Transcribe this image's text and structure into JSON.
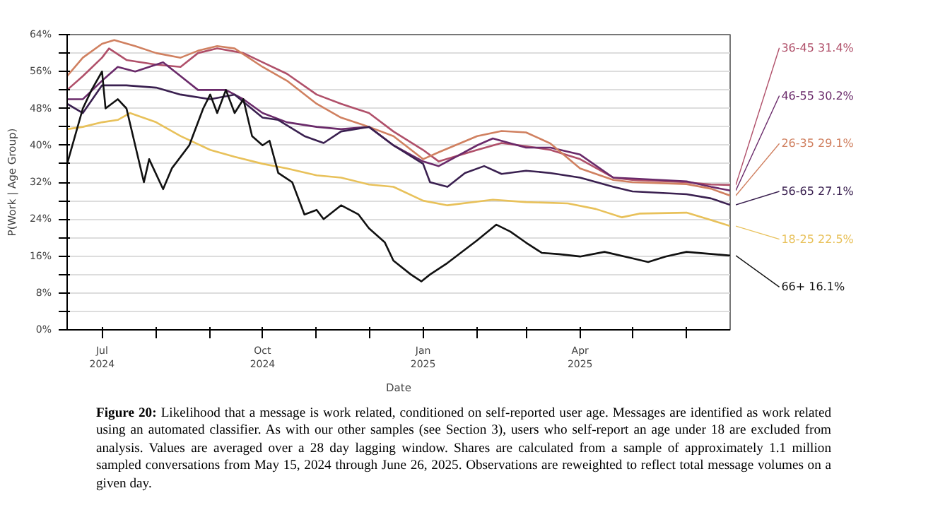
{
  "chart_data": {
    "type": "line",
    "xlabel": "Date",
    "ylabel": "P(Work | Age Group)",
    "xlim": [
      "2024-06-11",
      "2025-06-26"
    ],
    "xticks": [
      {
        "value": "2024-07-01",
        "label": "Jul\n2024"
      },
      {
        "value": "2024-08-01",
        "label": null
      },
      {
        "value": "2024-09-01",
        "label": null
      },
      {
        "value": "2024-10-01",
        "label": "Oct\n2024"
      },
      {
        "value": "2024-11-01",
        "label": null
      },
      {
        "value": "2024-12-01",
        "label": null
      },
      {
        "value": "2025-01-01",
        "label": "Jan\n2025"
      },
      {
        "value": "2025-02-01",
        "label": null
      },
      {
        "value": "2025-03-01",
        "label": null
      },
      {
        "value": "2025-04-01",
        "label": "Apr\n2025"
      },
      {
        "value": "2025-05-01",
        "label": null
      },
      {
        "value": "2025-06-01",
        "label": null
      }
    ],
    "ylim": [
      0,
      64
    ],
    "yticks": [
      {
        "value": 0,
        "label": "0%"
      },
      {
        "value": 4,
        "label": null
      },
      {
        "value": 8,
        "label": "8%"
      },
      {
        "value": 12,
        "label": null
      },
      {
        "value": 16,
        "label": "16%"
      },
      {
        "value": 20,
        "label": null
      },
      {
        "value": 24,
        "label": "24%"
      },
      {
        "value": 28,
        "label": null
      },
      {
        "value": 32,
        "label": "32%"
      },
      {
        "value": 36,
        "label": null
      },
      {
        "value": 40,
        "label": "40%"
      },
      {
        "value": 44,
        "label": null
      },
      {
        "value": 48,
        "label": "48%"
      },
      {
        "value": 52,
        "label": null
      },
      {
        "value": 56,
        "label": "56%"
      },
      {
        "value": 60,
        "label": null
      },
      {
        "value": 64,
        "label": "64%"
      }
    ],
    "grid": "y",
    "marker": "none",
    "line_style": "solid",
    "series": [
      {
        "name": "36-45",
        "color": "#b0506a",
        "x": [
          "2024-06-11",
          "2024-06-20",
          "2024-07-01",
          "2024-07-05",
          "2024-07-15",
          "2024-08-01",
          "2024-08-15",
          "2024-08-25",
          "2024-09-05",
          "2024-09-20",
          "2024-10-01",
          "2024-10-15",
          "2024-11-01",
          "2024-11-15",
          "2024-12-01",
          "2024-12-15",
          "2025-01-01",
          "2025-01-10",
          "2025-02-01",
          "2025-02-15",
          "2025-03-01",
          "2025-03-15",
          "2025-04-01",
          "2025-04-20",
          "2025-05-01",
          "2025-06-01",
          "2025-06-15",
          "2025-06-26"
        ],
        "values": [
          52,
          55,
          59,
          61,
          58.5,
          57.5,
          57,
          60,
          61,
          60,
          58,
          55.5,
          51,
          49,
          47,
          43,
          39,
          36.5,
          39,
          40.5,
          39.8,
          39,
          37,
          33,
          32.5,
          32,
          31.5,
          31.4
        ],
        "value_labels": [
          null,
          null,
          null,
          null,
          null,
          null,
          null,
          null,
          null,
          null,
          null,
          null,
          null,
          null,
          null,
          null,
          null,
          null,
          null,
          null,
          null,
          null,
          null,
          null,
          null,
          null,
          null,
          "31.4%"
        ]
      },
      {
        "name": "46-55",
        "color": "#6a2a6a",
        "x": [
          "2024-06-11",
          "2024-06-20",
          "2024-07-01",
          "2024-07-10",
          "2024-07-20",
          "2024-08-05",
          "2024-08-15",
          "2024-08-25",
          "2024-09-10",
          "2024-09-20",
          "2024-10-01",
          "2024-10-15",
          "2024-11-01",
          "2024-11-15",
          "2024-12-01",
          "2024-12-15",
          "2025-01-01",
          "2025-01-10",
          "2025-02-01",
          "2025-02-10",
          "2025-03-01",
          "2025-03-15",
          "2025-04-01",
          "2025-04-20",
          "2025-05-01",
          "2025-06-01",
          "2025-06-15",
          "2025-06-26"
        ],
        "values": [
          50,
          50,
          54,
          57,
          56,
          58,
          55,
          52,
          52,
          50,
          47,
          45,
          44,
          43.5,
          44,
          40,
          36.5,
          35.5,
          40,
          41.5,
          39.5,
          39.5,
          38,
          33,
          32.8,
          32.2,
          31,
          30.2
        ],
        "value_labels": [
          null,
          null,
          null,
          null,
          null,
          null,
          null,
          null,
          null,
          null,
          null,
          null,
          null,
          null,
          null,
          null,
          null,
          null,
          null,
          null,
          null,
          null,
          null,
          null,
          null,
          null,
          null,
          "30.2%"
        ]
      },
      {
        "name": "26-35",
        "color": "#d08060",
        "x": [
          "2024-06-11",
          "2024-06-20",
          "2024-07-01",
          "2024-07-08",
          "2024-07-20",
          "2024-08-01",
          "2024-08-15",
          "2024-08-25",
          "2024-09-05",
          "2024-09-15",
          "2024-10-01",
          "2024-10-15",
          "2024-11-01",
          "2024-11-15",
          "2024-12-01",
          "2024-12-15",
          "2025-01-01",
          "2025-01-10",
          "2025-02-01",
          "2025-02-15",
          "2025-03-01",
          "2025-03-15",
          "2025-04-01",
          "2025-04-20",
          "2025-05-01",
          "2025-06-01",
          "2025-06-15",
          "2025-06-26"
        ],
        "values": [
          55,
          59,
          62,
          62.8,
          61.5,
          60,
          59,
          60.5,
          61.5,
          61,
          57,
          54,
          49,
          46,
          44,
          42,
          37,
          38.5,
          42,
          43.1,
          42.8,
          40.4,
          35,
          32.5,
          32,
          31.6,
          30.6,
          29.1
        ],
        "value_labels": [
          null,
          null,
          null,
          null,
          null,
          null,
          null,
          null,
          null,
          null,
          null,
          null,
          null,
          null,
          null,
          null,
          null,
          null,
          null,
          null,
          null,
          null,
          null,
          null,
          null,
          null,
          null,
          "29.1%"
        ]
      },
      {
        "name": "56-65",
        "color": "#3a2050",
        "x": [
          "2024-06-11",
          "2024-06-20",
          "2024-07-01",
          "2024-07-15",
          "2024-08-01",
          "2024-08-15",
          "2024-09-01",
          "2024-09-15",
          "2024-10-01",
          "2024-10-10",
          "2024-10-25",
          "2024-11-05",
          "2024-11-15",
          "2024-12-01",
          "2024-12-15",
          "2025-01-01",
          "2025-01-05",
          "2025-01-15",
          "2025-01-25",
          "2025-02-05",
          "2025-02-15",
          "2025-03-01",
          "2025-03-15",
          "2025-04-01",
          "2025-04-20",
          "2025-05-01",
          "2025-06-01",
          "2025-06-15",
          "2025-06-26"
        ],
        "values": [
          49,
          47,
          53,
          53,
          52.5,
          51,
          50,
          51,
          46,
          45.5,
          42,
          40.5,
          43,
          44,
          40,
          36,
          32,
          31,
          34,
          35.5,
          33.8,
          34.5,
          34,
          33,
          31,
          30,
          29.4,
          28.5,
          27.1
        ],
        "value_labels": [
          null,
          null,
          null,
          null,
          null,
          null,
          null,
          null,
          null,
          null,
          null,
          null,
          null,
          null,
          null,
          null,
          null,
          null,
          null,
          null,
          null,
          null,
          null,
          null,
          null,
          null,
          null,
          null,
          "27.1%"
        ]
      },
      {
        "name": "18-25",
        "color": "#e8c15a",
        "x": [
          "2024-06-11",
          "2024-06-20",
          "2024-07-01",
          "2024-07-10",
          "2024-07-17",
          "2024-08-01",
          "2024-08-15",
          "2024-09-01",
          "2024-09-15",
          "2024-10-01",
          "2024-10-15",
          "2024-11-01",
          "2024-11-15",
          "2024-12-01",
          "2024-12-15",
          "2025-01-01",
          "2025-01-15",
          "2025-02-10",
          "2025-03-01",
          "2025-03-25",
          "2025-04-10",
          "2025-04-25",
          "2025-05-05",
          "2025-06-01",
          "2025-06-15",
          "2025-06-26"
        ],
        "values": [
          43.5,
          44,
          45,
          45.5,
          47,
          45,
          42,
          39,
          37.5,
          36,
          35,
          33.5,
          33,
          31.5,
          31,
          28,
          27,
          28.2,
          27.7,
          27.4,
          26.2,
          24.4,
          25.2,
          25.4,
          23.8,
          22.5
        ],
        "value_labels": [
          null,
          null,
          null,
          null,
          null,
          null,
          null,
          null,
          null,
          null,
          null,
          null,
          null,
          null,
          null,
          null,
          null,
          null,
          null,
          null,
          null,
          null,
          null,
          null,
          null,
          "22.5%"
        ]
      },
      {
        "name": "66+",
        "color": "#111111",
        "x": [
          "2024-06-11",
          "2024-06-20",
          "2024-06-25",
          "2024-07-01",
          "2024-07-03",
          "2024-07-10",
          "2024-07-15",
          "2024-07-20",
          "2024-07-25",
          "2024-07-28",
          "2024-08-05",
          "2024-08-10",
          "2024-08-20",
          "2024-08-28",
          "2024-09-01",
          "2024-09-05",
          "2024-09-10",
          "2024-09-15",
          "2024-09-20",
          "2024-09-25",
          "2024-10-01",
          "2024-10-05",
          "2024-10-10",
          "2024-10-18",
          "2024-10-25",
          "2024-11-01",
          "2024-11-05",
          "2024-11-15",
          "2024-11-25",
          "2024-12-01",
          "2024-12-10",
          "2024-12-15",
          "2024-12-25",
          "2024-12-31",
          "2025-01-05",
          "2025-01-15",
          "2025-02-01",
          "2025-02-12",
          "2025-02-20",
          "2025-03-01",
          "2025-03-10",
          "2025-03-20",
          "2025-04-01",
          "2025-04-15",
          "2025-05-01",
          "2025-05-10",
          "2025-05-20",
          "2025-06-01",
          "2025-06-26"
        ],
        "values": [
          36,
          48,
          52,
          56,
          48,
          50,
          48,
          40,
          32,
          37,
          30.5,
          35,
          40,
          48,
          51,
          47,
          52,
          47,
          50,
          42,
          40,
          41,
          34,
          32,
          25,
          26,
          24,
          27,
          25,
          22,
          19,
          15,
          12,
          10.5,
          12,
          14.5,
          19.4,
          22.8,
          21.3,
          18.9,
          16.7,
          16.4,
          15.9,
          16.9,
          15.5,
          14.7,
          15.9,
          16.9,
          16.1
        ],
        "value_labels": [
          null,
          null,
          null,
          null,
          null,
          null,
          null,
          null,
          null,
          null,
          null,
          null,
          null,
          null,
          null,
          null,
          null,
          null,
          null,
          null,
          null,
          null,
          null,
          null,
          null,
          null,
          null,
          null,
          null,
          null,
          null,
          null,
          null,
          null,
          null,
          null,
          null,
          null,
          null,
          null,
          null,
          null,
          null,
          null,
          null,
          null,
          null,
          null,
          "16.1%"
        ]
      }
    ],
    "annotations": [
      "Figure 20: Likelihood that a message is work related, conditioned on self-reported user age. Messages are identified as work related using an automated classifier. As with our other samples (see Section 3), users who self-report an age under 18 are excluded from analysis. Values are averaged over a 28 day lagging window. Shares are calculated from a sample of approximately 1.1 million sampled conversations from May 15, 2024 through June 26, 2025. Observations are reweighted to reflect total message volumes on a given day."
    ]
  }
}
